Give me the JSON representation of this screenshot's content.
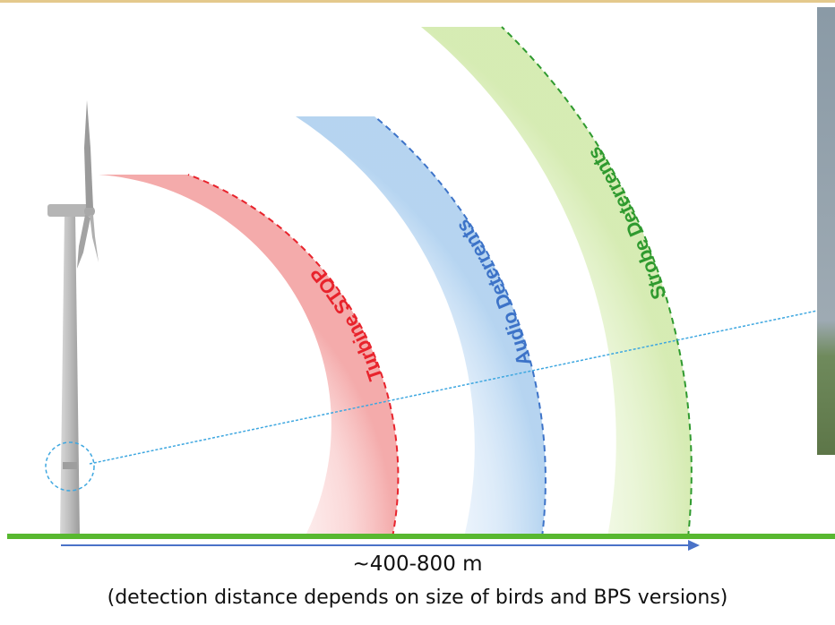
{
  "zones": [
    {
      "label": "Turbine STOP",
      "color": "#e8232c"
    },
    {
      "label": "Audio Deterrents",
      "color": "#3d73c8"
    },
    {
      "label": "Strobe Deterrents",
      "color": "#2f9a2f"
    }
  ],
  "distance_label": "~400-800 m",
  "note": "(detection distance depends on size of birds and BPS versions)",
  "colors": {
    "ground": "#58b830",
    "arrow": "#4a72c8",
    "radar_beam": "#3ea7e0",
    "top_rule": "#e4c98c",
    "turbine": "#c4c4c4"
  }
}
